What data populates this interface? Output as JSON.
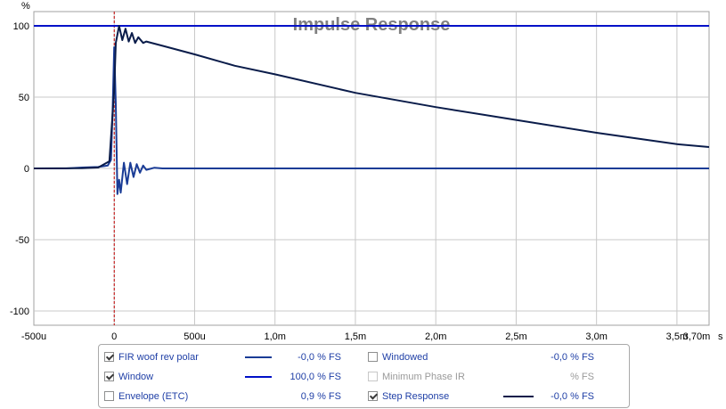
{
  "chart_data": {
    "type": "line",
    "title": "Impulse Response",
    "ylabel": "%",
    "xunit": "s",
    "xlim": [
      -0.0005,
      0.0037
    ],
    "ylim": [
      -110,
      110
    ],
    "x_ticks": [
      {
        "value": -0.0005,
        "label": "-500u"
      },
      {
        "value": 0,
        "label": "0"
      },
      {
        "value": 0.0005,
        "label": "500u"
      },
      {
        "value": 0.001,
        "label": "1,0m"
      },
      {
        "value": 0.0015,
        "label": "1,5m"
      },
      {
        "value": 0.002,
        "label": "2,0m"
      },
      {
        "value": 0.0025,
        "label": "2,5m"
      },
      {
        "value": 0.003,
        "label": "3,0m"
      },
      {
        "value": 0.0035,
        "label": "3,5m"
      },
      {
        "value": 0.0037,
        "label": "3,70m"
      }
    ],
    "y_ticks": [
      {
        "value": 100,
        "label": "100"
      },
      {
        "value": 50,
        "label": "50"
      },
      {
        "value": 0,
        "label": "0"
      },
      {
        "value": -50,
        "label": "-50"
      },
      {
        "value": -100,
        "label": "-100"
      }
    ],
    "grid": true,
    "marker_x": 0,
    "series": [
      {
        "name": "FIR woof rev polar",
        "color": "#1a3c96",
        "x": [
          -0.0005,
          -0.0003,
          -0.0002,
          -0.0001,
          -4e-05,
          -2e-05,
          -1e-05,
          0,
          1e-05,
          2e-05,
          3e-05,
          4e-05,
          6e-05,
          8e-05,
          0.0001,
          0.00012,
          0.00014,
          0.00016,
          0.00018,
          0.0002,
          0.00025,
          0.0003,
          0.0005,
          0.001,
          0.002,
          0.003,
          0.0037
        ],
        "y": [
          0,
          0,
          0.6,
          1,
          2,
          6,
          40,
          85,
          45,
          -18,
          -8,
          -17,
          4,
          -11,
          4,
          -6,
          3,
          -3,
          2,
          -1,
          0.5,
          0,
          0,
          0,
          0,
          0,
          0
        ]
      },
      {
        "name": "Window",
        "color": "#0010c8",
        "x": [
          -0.0005,
          0.0037
        ],
        "y": [
          100,
          100
        ]
      },
      {
        "name": "Step Response",
        "color": "#0a1c4a",
        "x": [
          -0.0005,
          -0.0002,
          -0.0001,
          -3e-05,
          0,
          1e-05,
          3e-05,
          5e-05,
          7e-05,
          9e-05,
          0.00011,
          0.00013,
          0.00015,
          0.00018,
          0.0002,
          0.0003,
          0.0005,
          0.00075,
          0.001,
          0.0015,
          0.002,
          0.0025,
          0.003,
          0.0035,
          0.0037
        ],
        "y": [
          0,
          0.2,
          0.6,
          5,
          55,
          88,
          100,
          90,
          98,
          89,
          95,
          88,
          92,
          88,
          89,
          86,
          80,
          72,
          66,
          53,
          43,
          34,
          25,
          17,
          15
        ]
      }
    ],
    "legend_placement": "bottom-center"
  },
  "legend": {
    "items": [
      {
        "label": "FIR woof rev polar",
        "value": "-0,0 % FS",
        "checked": true,
        "color": "#1a3c96",
        "enabled": true
      },
      {
        "label": "Windowed",
        "value": "-0,0 % FS",
        "checked": false,
        "color": "",
        "enabled": true
      },
      {
        "label": "Window",
        "value": "100,0 % FS",
        "checked": true,
        "color": "#0010c8",
        "enabled": true
      },
      {
        "label": "Minimum Phase IR",
        "value": "% FS",
        "checked": false,
        "color": "",
        "enabled": false
      },
      {
        "label": "Envelope (ETC)",
        "value": "0,9 % FS",
        "checked": false,
        "color": "",
        "enabled": true
      },
      {
        "label": "Step Response",
        "value": "-0,0 % FS",
        "checked": true,
        "color": "#0a1c4a",
        "enabled": true
      }
    ]
  },
  "colors": {
    "grid": "#c8c8c8",
    "marker": "#c00000",
    "title": "#808080"
  }
}
